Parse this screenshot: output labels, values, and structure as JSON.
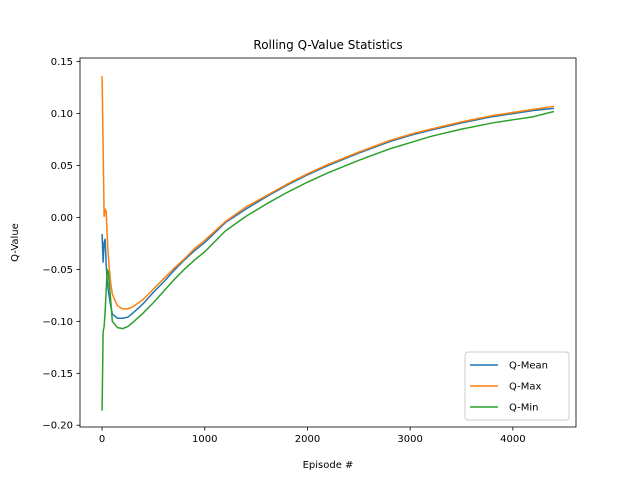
{
  "chart_data": {
    "type": "line",
    "title": "Rolling Q-Value Statistics",
    "xlabel": "Episode #",
    "ylabel": "Q-Value",
    "xlim": [
      -215,
      4615
    ],
    "ylim": [
      -0.2017,
      0.1535
    ],
    "xticks": [
      0,
      1000,
      2000,
      3000,
      4000
    ],
    "xtick_labels": [
      "0",
      "1000",
      "2000",
      "3000",
      "4000"
    ],
    "yticks": [
      -0.2,
      -0.15,
      -0.1,
      -0.05,
      0.0,
      0.05,
      0.1,
      0.15
    ],
    "ytick_labels": [
      "−0.20",
      "−0.15",
      "−0.10",
      "−0.05",
      "0.00",
      "0.05",
      "0.10",
      "0.15"
    ],
    "grid": false,
    "legend_position": "lower right",
    "series": [
      {
        "name": "Q-Mean",
        "color": "#1f77b4",
        "x": [
          0,
          10,
          20,
          30,
          40,
          50,
          60,
          80,
          100,
          150,
          200,
          250,
          300,
          400,
          500,
          600,
          700,
          800,
          900,
          1000,
          1200,
          1400,
          1600,
          1800,
          2000,
          2200,
          2500,
          2800,
          3000,
          3200,
          3500,
          3800,
          4000,
          4200,
          4400
        ],
        "y": [
          -0.016,
          -0.043,
          -0.024,
          -0.021,
          -0.046,
          -0.06,
          -0.07,
          -0.083,
          -0.093,
          -0.097,
          -0.097,
          -0.096,
          -0.092,
          -0.083,
          -0.072,
          -0.062,
          -0.051,
          -0.041,
          -0.032,
          -0.024,
          -0.005,
          0.008,
          0.02,
          0.031,
          0.041,
          0.05,
          0.062,
          0.073,
          0.079,
          0.084,
          0.091,
          0.097,
          0.1,
          0.103,
          0.105
        ]
      },
      {
        "name": "Q-Max",
        "color": "#ff7f0e",
        "x": [
          0,
          10,
          20,
          30,
          40,
          50,
          60,
          80,
          100,
          150,
          200,
          250,
          300,
          400,
          500,
          600,
          700,
          800,
          900,
          1000,
          1200,
          1400,
          1600,
          1800,
          2000,
          2200,
          2500,
          2800,
          3000,
          3200,
          3500,
          3800,
          4000,
          4200,
          4400
        ],
        "y": [
          0.136,
          0.068,
          0.001,
          0.008,
          0.006,
          -0.018,
          -0.036,
          -0.06,
          -0.074,
          -0.085,
          -0.088,
          -0.088,
          -0.086,
          -0.079,
          -0.069,
          -0.059,
          -0.049,
          -0.04,
          -0.03,
          -0.022,
          -0.004,
          0.01,
          0.021,
          0.032,
          0.042,
          0.051,
          0.063,
          0.074,
          0.08,
          0.085,
          0.092,
          0.098,
          0.101,
          0.104,
          0.107
        ]
      },
      {
        "name": "Q-Min",
        "color": "#2ca02c",
        "x": [
          0,
          10,
          20,
          30,
          40,
          50,
          60,
          80,
          100,
          150,
          200,
          250,
          300,
          400,
          500,
          600,
          700,
          800,
          900,
          1000,
          1200,
          1400,
          1600,
          1800,
          2000,
          2200,
          2500,
          2800,
          3000,
          3200,
          3500,
          3800,
          4000,
          4200,
          4400
        ],
        "y": [
          -0.186,
          -0.11,
          -0.105,
          -0.09,
          -0.07,
          -0.05,
          -0.052,
          -0.075,
          -0.1,
          -0.106,
          -0.107,
          -0.105,
          -0.101,
          -0.092,
          -0.082,
          -0.071,
          -0.06,
          -0.05,
          -0.041,
          -0.033,
          -0.013,
          0.001,
          0.013,
          0.024,
          0.034,
          0.043,
          0.055,
          0.066,
          0.072,
          0.078,
          0.085,
          0.091,
          0.094,
          0.097,
          0.102
        ]
      }
    ]
  }
}
